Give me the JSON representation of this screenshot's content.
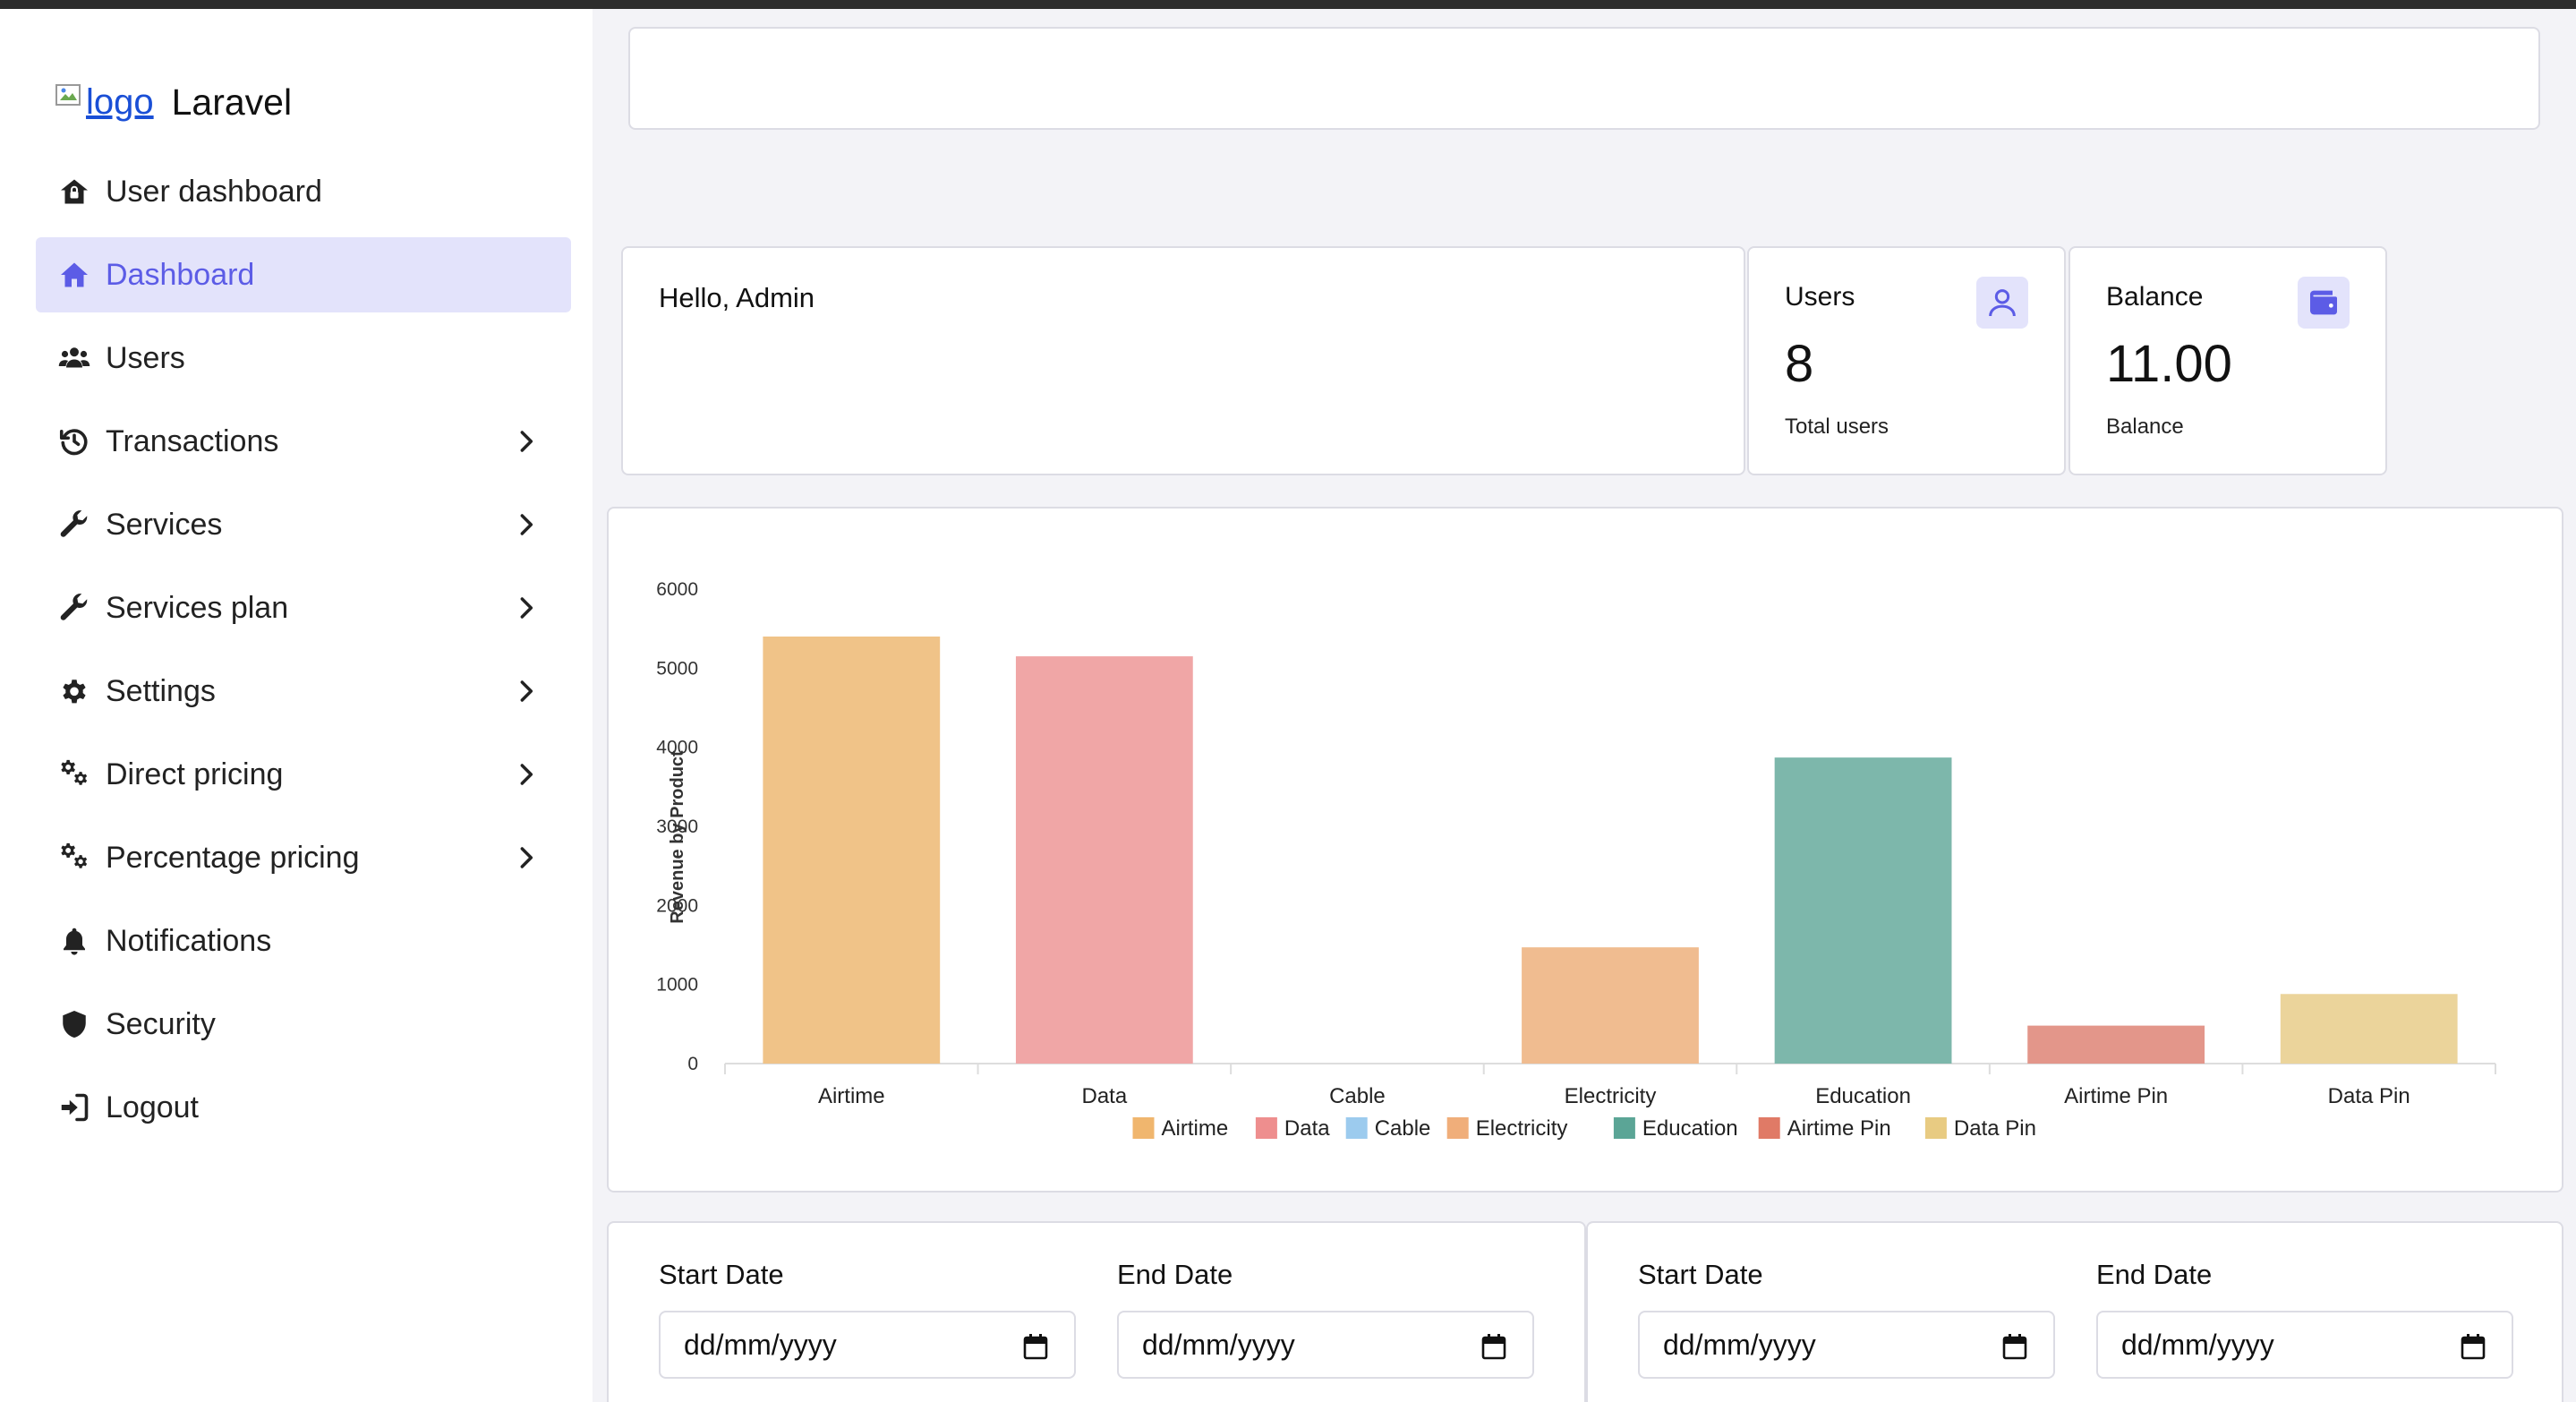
{
  "brand": {
    "logo_alt": "logo",
    "name": "Laravel"
  },
  "sidebar": {
    "items": [
      {
        "label": "User dashboard",
        "icon": "home-lock-icon",
        "active": false,
        "expandable": false
      },
      {
        "label": "Dashboard",
        "icon": "home-icon",
        "active": true,
        "expandable": false
      },
      {
        "label": "Users",
        "icon": "users-icon",
        "active": false,
        "expandable": false
      },
      {
        "label": "Transactions",
        "icon": "history-icon",
        "active": false,
        "expandable": true
      },
      {
        "label": "Services",
        "icon": "wrench-icon",
        "active": false,
        "expandable": true
      },
      {
        "label": "Services plan",
        "icon": "wrench-icon",
        "active": false,
        "expandable": true
      },
      {
        "label": "Settings",
        "icon": "gear-icon",
        "active": false,
        "expandable": true
      },
      {
        "label": "Direct pricing",
        "icon": "gears-icon",
        "active": false,
        "expandable": true
      },
      {
        "label": "Percentage pricing",
        "icon": "gears-icon",
        "active": false,
        "expandable": true
      },
      {
        "label": "Notifications",
        "icon": "bell-icon",
        "active": false,
        "expandable": false
      },
      {
        "label": "Security",
        "icon": "shield-icon",
        "active": false,
        "expandable": false
      },
      {
        "label": "Logout",
        "icon": "logout-icon",
        "active": false,
        "expandable": false
      }
    ]
  },
  "greeting": "Hello, Admin",
  "stats": {
    "users": {
      "title": "Users",
      "value": "8",
      "subtitle": "Total users",
      "icon": "user-icon"
    },
    "balance": {
      "title": "Balance",
      "value": "11.00",
      "subtitle": "Balance",
      "icon": "wallet-icon"
    }
  },
  "colors": {
    "accent": "#5c5ce6",
    "accent_bg": "#e3e3fb"
  },
  "chart_data": {
    "type": "bar",
    "title": "",
    "xlabel": "",
    "ylabel": "Revenue by Product",
    "ylim": [
      0,
      6000
    ],
    "yticks": [
      0,
      1000,
      2000,
      3000,
      4000,
      5000,
      6000
    ],
    "grid": false,
    "legend": "bottom",
    "categories": [
      "Airtime",
      "Data",
      "Cable",
      "Electricity",
      "Education",
      "Airtime Pin",
      "Data Pin"
    ],
    "values": [
      5400,
      5150,
      0,
      1470,
      3870,
      480,
      880
    ],
    "colors": [
      "#f0c388",
      "#f0a6a6",
      "#a5d1f1",
      "#f0bc90",
      "#7db7ab",
      "#e3968a",
      "#ebd49b"
    ],
    "legend_colors": [
      "#f0b66e",
      "#ee8e8e",
      "#9ccbee",
      "#f0ae7a",
      "#5ba596",
      "#e07a66",
      "#e8cb82"
    ]
  },
  "date_filters": [
    {
      "start_label": "Start Date",
      "start_placeholder": "dd/mm/yyyy",
      "end_label": "End Date",
      "end_placeholder": "dd/mm/yyyy"
    },
    {
      "start_label": "Start Date",
      "start_placeholder": "dd/mm/yyyy",
      "end_label": "End Date",
      "end_placeholder": "dd/mm/yyyy"
    }
  ]
}
